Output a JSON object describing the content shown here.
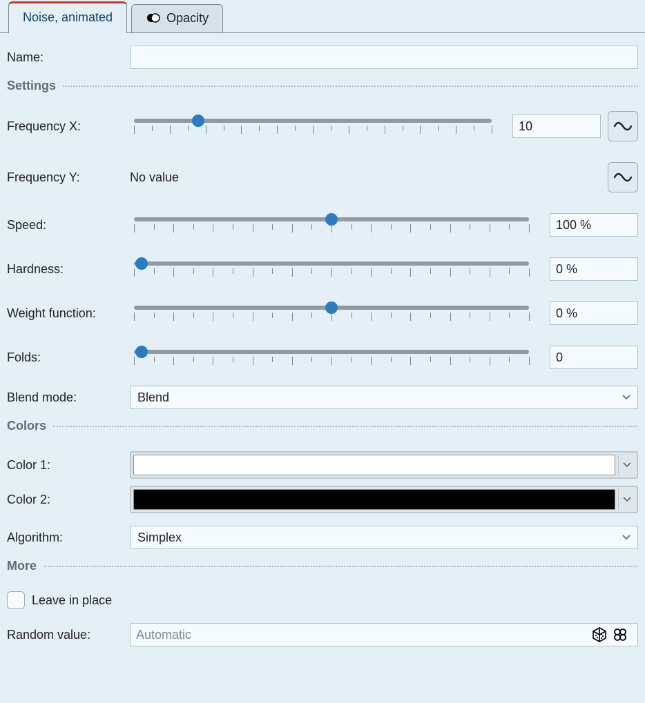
{
  "tabs": [
    {
      "label": "Noise, animated",
      "active": true
    },
    {
      "label": "Opacity",
      "active": false
    }
  ],
  "name": {
    "label": "Name:",
    "value": ""
  },
  "sections": {
    "settings": "Settings",
    "colors": "Colors",
    "more": "More"
  },
  "settings": {
    "frequency_x": {
      "label": "Frequency X:",
      "slider": {
        "min": 0,
        "max": 100,
        "value": 18,
        "major_ticks": 11,
        "minor_ticks": 10
      },
      "value": "10",
      "has_spin": true,
      "has_wave": true
    },
    "frequency_y": {
      "label": "Frequency Y:",
      "novalue_text": "No value",
      "has_wave": true
    },
    "speed": {
      "label": "Speed:",
      "slider": {
        "min": 0,
        "max": 100,
        "value": 50,
        "major_ticks": 11,
        "minor_ticks": 10
      },
      "value": "100 %",
      "has_spin": true
    },
    "hardness": {
      "label": "Hardness:",
      "slider": {
        "min": 0,
        "max": 100,
        "value": 2,
        "major_ticks": 11,
        "minor_ticks": 10
      },
      "value": "0 %",
      "has_spin": true
    },
    "weight_function": {
      "label": "Weight function:",
      "slider": {
        "min": 0,
        "max": 100,
        "value": 50,
        "major_ticks": 11,
        "minor_ticks": 10
      },
      "value": "0 %",
      "has_spin": true
    },
    "folds": {
      "label": "Folds:",
      "slider": {
        "min": 0,
        "max": 100,
        "value": 2,
        "major_ticks": 11,
        "minor_ticks": 10
      },
      "value": "0",
      "has_spin": true
    },
    "blend_mode": {
      "label": "Blend mode:",
      "value": "Blend"
    }
  },
  "colors": {
    "color1": {
      "label": "Color 1:",
      "hex": "#ffffff"
    },
    "color2": {
      "label": "Color 2:",
      "hex": "#000000"
    },
    "algorithm": {
      "label": "Algorithm:",
      "value": "Simplex"
    }
  },
  "more": {
    "leave_in_place": {
      "label": "Leave in place",
      "checked": false
    },
    "random_value": {
      "label": "Random value:",
      "placeholder": "Automatic"
    }
  },
  "style": {
    "bg": "#e5eff6",
    "accent": "#2a7bbf",
    "tab_active_border": "#c0392b",
    "border": "#b0c2cf",
    "text": "#222222",
    "muted_text": "#5f6d77",
    "placeholder": "#808a92"
  }
}
